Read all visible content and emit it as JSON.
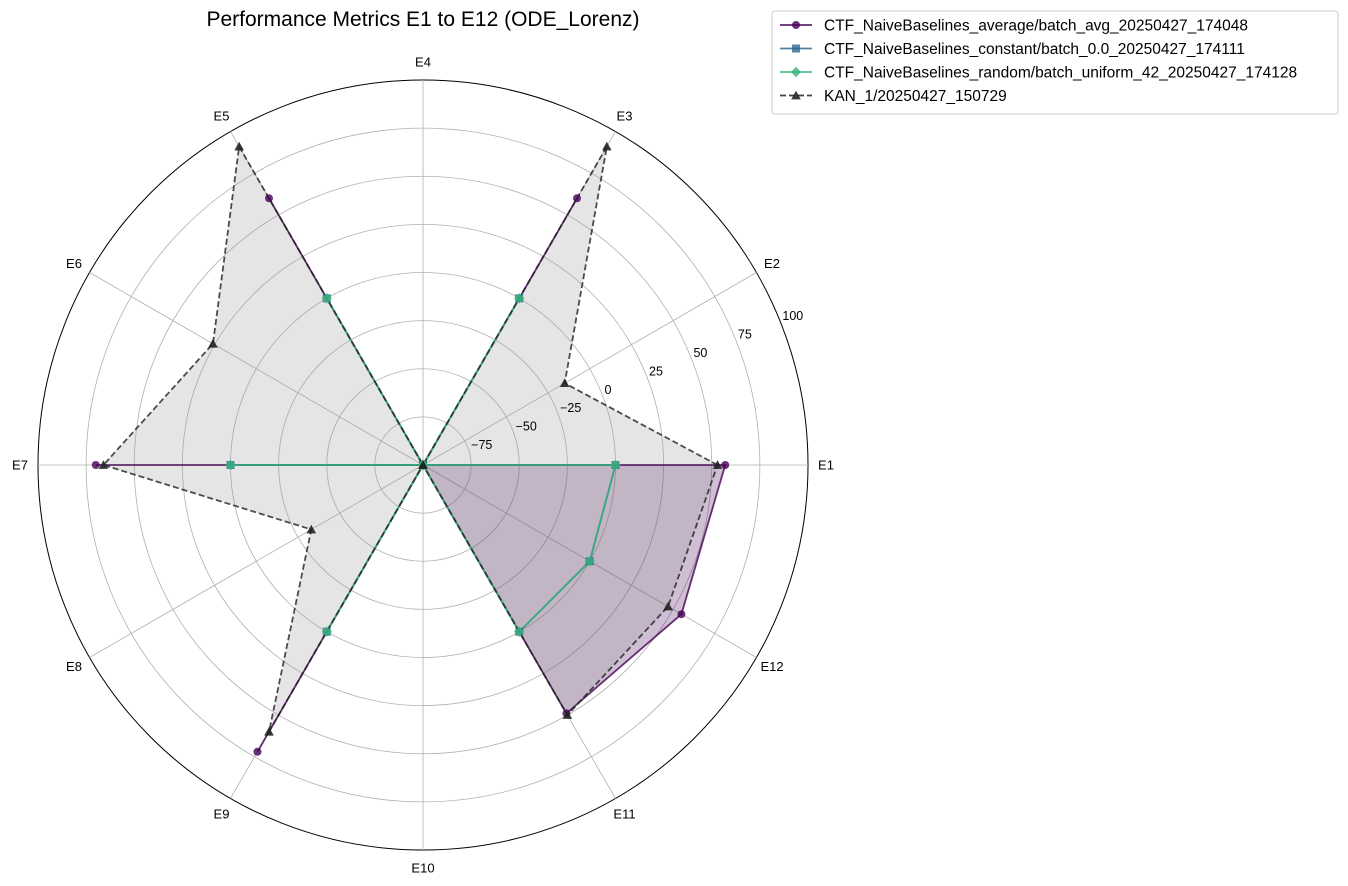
{
  "chart_data": {
    "type": "radar",
    "title": "Performance Metrics E1 to E12 (ODE_Lorenz)",
    "categories": [
      "E1",
      "E2",
      "E3",
      "E4",
      "E5",
      "E6",
      "E7",
      "E8",
      "E9",
      "E10",
      "E11",
      "E12"
    ],
    "rlim": [
      -100,
      100
    ],
    "r_ticks": [
      -75,
      -50,
      -25,
      0,
      25,
      50,
      75,
      100
    ],
    "r_tick_labels": [
      "−75",
      "−50",
      "−25",
      "0",
      "25",
      "50",
      "75",
      "100"
    ],
    "grid": true,
    "legend_position": "upper-right, outside plot",
    "series": [
      {
        "name": "CTF_NaiveBaselines_average/batch_avg_20250427_174048",
        "color": "#440154",
        "marker": "circle",
        "linestyle": "solid",
        "fill": true,
        "values": [
          57,
          -100,
          60,
          -100,
          60,
          -100,
          70,
          -100,
          72,
          -100,
          49,
          55
        ]
      },
      {
        "name": "CTF_NaiveBaselines_constant/batch_0.0_20250427_174111",
        "color": "#31688e",
        "marker": "square",
        "linestyle": "solid",
        "fill": false,
        "values": [
          0,
          -100,
          0,
          -100,
          0,
          -100,
          0,
          -100,
          0,
          -100,
          0,
          0
        ]
      },
      {
        "name": "CTF_NaiveBaselines_random/batch_uniform_42_20250427_174128",
        "color": "#35b779",
        "marker": "diamond",
        "linestyle": "solid",
        "fill": false,
        "values": [
          0,
          -100,
          0,
          -100,
          0,
          -100,
          0,
          -100,
          0,
          -100,
          0,
          0
        ]
      },
      {
        "name": "KAN_1/20250427_150729",
        "color": "#222222",
        "marker": "triangle",
        "linestyle": "dashed",
        "fill": true,
        "values": [
          53,
          -15,
          91,
          -100,
          91,
          26,
          66,
          -33,
          60,
          -100,
          50,
          47
        ]
      }
    ]
  }
}
